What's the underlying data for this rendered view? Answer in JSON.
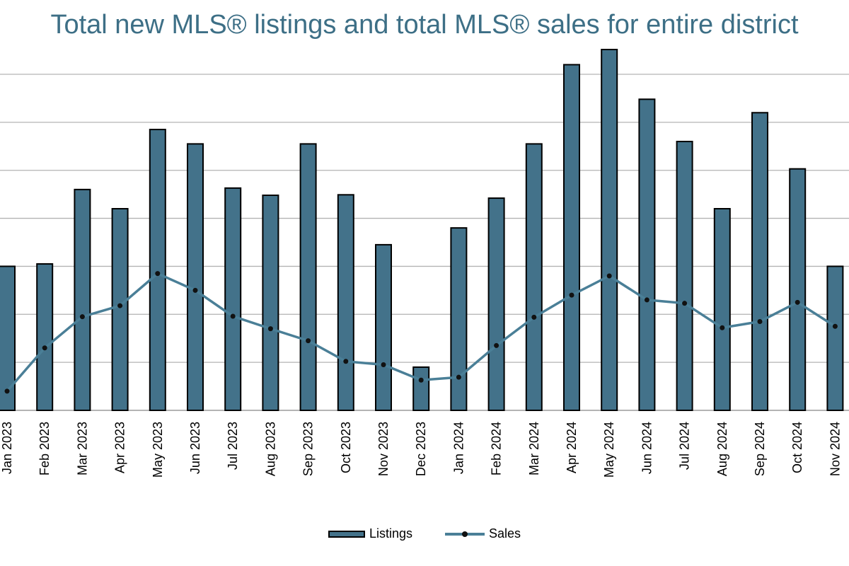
{
  "chart_data": {
    "type": "bar",
    "title": "Total new MLS® listings and total MLS® sales for entire district",
    "categories": [
      "Jan 2023",
      "Feb 2023",
      "Mar 2023",
      "Apr 2023",
      "May 2023",
      "Jun 2023",
      "Jul 2023",
      "Aug 2023",
      "Sep 2023",
      "Oct 2023",
      "Nov 2023",
      "Dec 2023",
      "Jan 2024",
      "Feb 2024",
      "Mar 2024",
      "Apr 2024",
      "May 2024",
      "Jun 2024",
      "Jul 2024",
      "Aug 2024",
      "Sep 2024",
      "Oct 2024",
      "Nov 2024"
    ],
    "series": [
      {
        "name": "Listings",
        "type": "bar",
        "values": [
          3.0,
          3.05,
          4.6,
          4.2,
          5.85,
          5.55,
          4.63,
          4.48,
          5.55,
          4.49,
          3.45,
          0.9,
          3.8,
          4.42,
          5.55,
          7.2,
          7.65,
          6.48,
          5.6,
          4.2,
          6.2,
          5.03,
          3.0
        ]
      },
      {
        "name": "Sales",
        "type": "line",
        "values": [
          0.4,
          1.3,
          1.95,
          2.18,
          2.85,
          2.5,
          1.96,
          1.7,
          1.45,
          1.02,
          0.95,
          0.63,
          0.69,
          1.35,
          1.94,
          2.4,
          2.8,
          2.3,
          2.23,
          1.72,
          1.85,
          2.25,
          1.75
        ]
      }
    ],
    "ylim": [
      0,
      7.5
    ],
    "grid": true,
    "legend_placement": "bottom-center",
    "colors": {
      "bar_fill": "#43728a",
      "bar_stroke": "#000000",
      "line": "#4a7f97",
      "marker": "#111111",
      "grid": "#b3b3b3",
      "title": "#3d6f86"
    }
  },
  "legend": {
    "listings_label": "Listings",
    "sales_label": "Sales"
  }
}
